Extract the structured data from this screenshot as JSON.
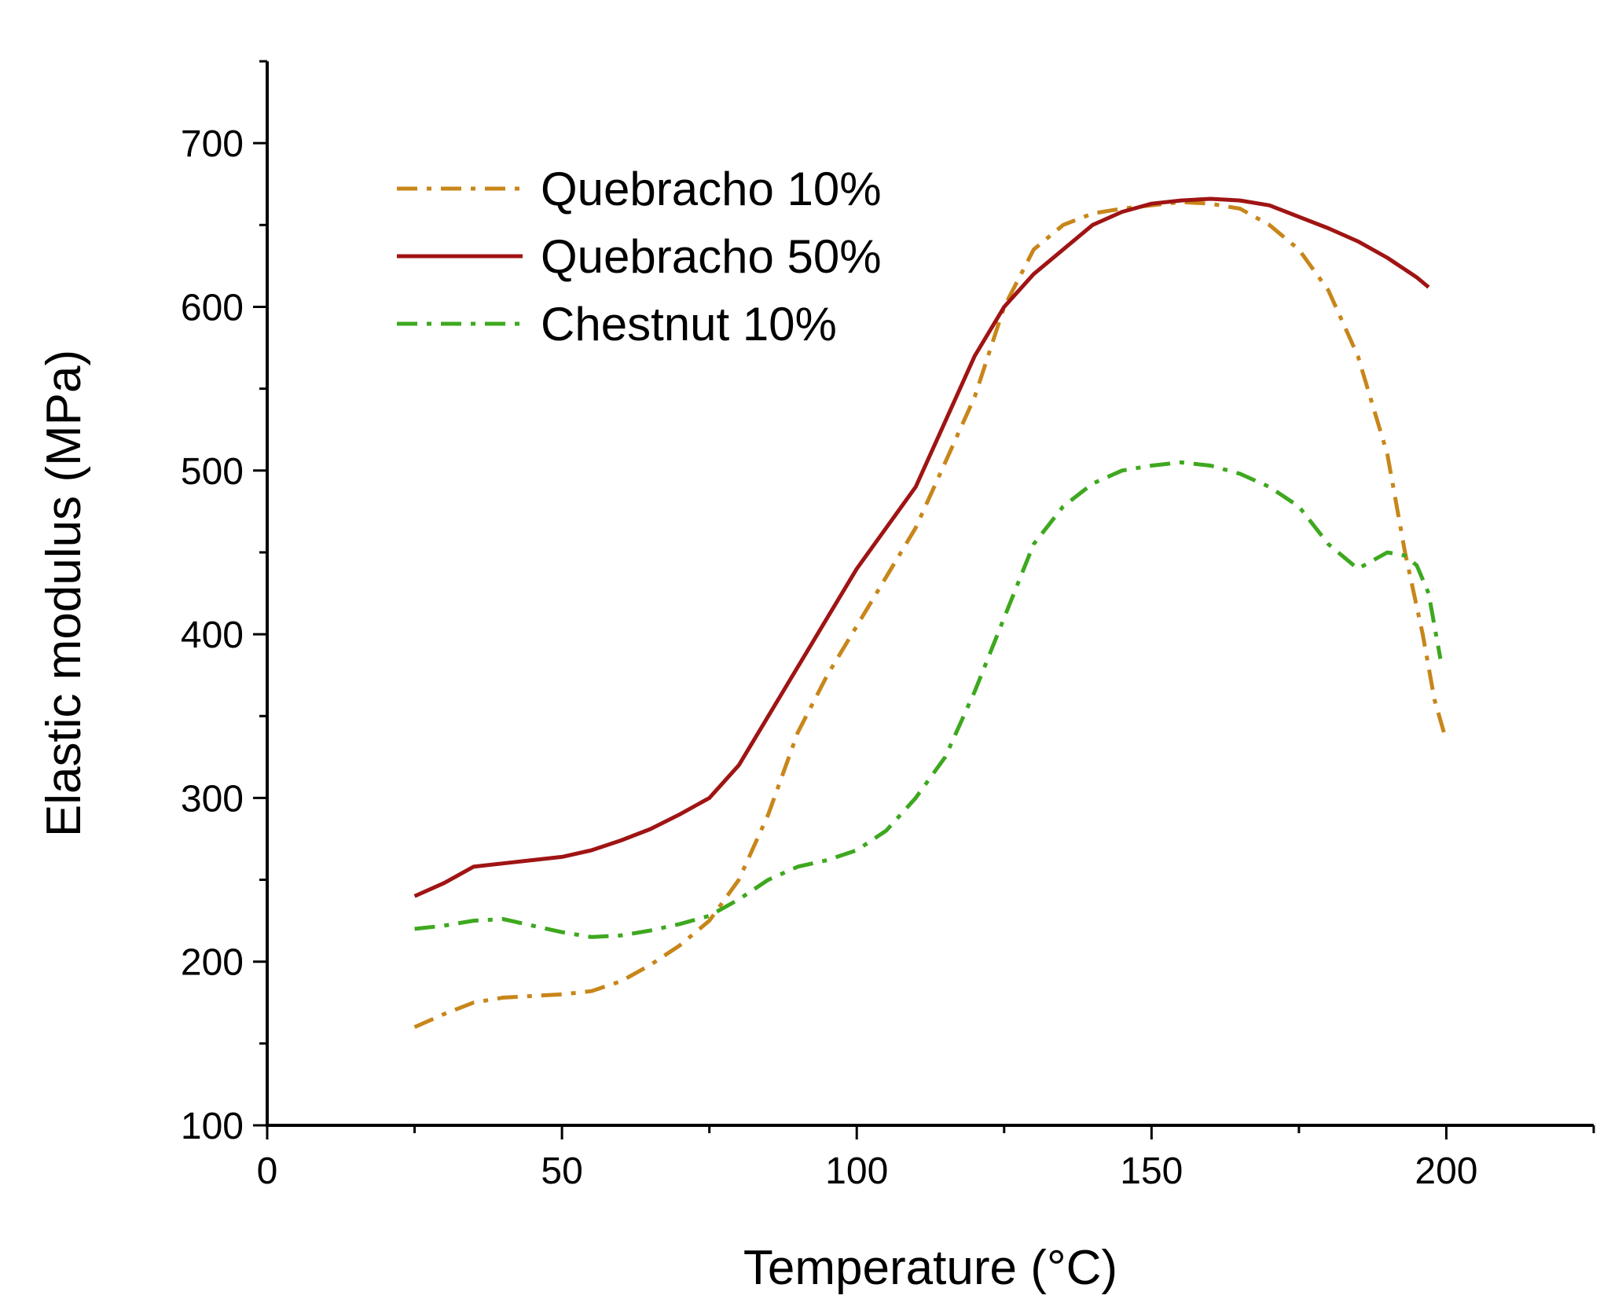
{
  "chart_data": {
    "type": "line",
    "title": "",
    "xlabel": "Temperature (°C)",
    "ylabel": "Elastic modulus (MPa)",
    "xlim": [
      0,
      225
    ],
    "ylim": [
      100,
      750
    ],
    "xticks": [
      0,
      50,
      100,
      150,
      200
    ],
    "yticks": [
      100,
      200,
      300,
      400,
      500,
      600,
      700
    ],
    "x_minor_step": 25,
    "y_minor_step": 50,
    "legend_position": "top-left",
    "series": [
      {
        "name": "Quebracho 10%",
        "color": "#C8861A",
        "style": "dashdot",
        "points": [
          [
            25,
            160
          ],
          [
            30,
            168
          ],
          [
            35,
            175
          ],
          [
            40,
            178
          ],
          [
            45,
            179
          ],
          [
            50,
            180
          ],
          [
            55,
            182
          ],
          [
            60,
            188
          ],
          [
            65,
            198
          ],
          [
            70,
            210
          ],
          [
            75,
            225
          ],
          [
            80,
            250
          ],
          [
            85,
            290
          ],
          [
            90,
            340
          ],
          [
            95,
            375
          ],
          [
            100,
            405
          ],
          [
            105,
            435
          ],
          [
            110,
            465
          ],
          [
            115,
            505
          ],
          [
            120,
            545
          ],
          [
            125,
            600
          ],
          [
            130,
            635
          ],
          [
            135,
            650
          ],
          [
            140,
            657
          ],
          [
            145,
            660
          ],
          [
            150,
            662
          ],
          [
            155,
            664
          ],
          [
            160,
            663
          ],
          [
            165,
            660
          ],
          [
            170,
            650
          ],
          [
            175,
            635
          ],
          [
            180,
            610
          ],
          [
            185,
            570
          ],
          [
            190,
            510
          ],
          [
            193,
            450
          ],
          [
            196,
            400
          ],
          [
            198,
            360
          ],
          [
            200,
            335
          ]
        ]
      },
      {
        "name": "Quebracho 50%",
        "color": "#A01414",
        "style": "solid",
        "points": [
          [
            25,
            240
          ],
          [
            30,
            248
          ],
          [
            35,
            258
          ],
          [
            40,
            260
          ],
          [
            45,
            262
          ],
          [
            50,
            264
          ],
          [
            55,
            268
          ],
          [
            60,
            274
          ],
          [
            65,
            281
          ],
          [
            70,
            290
          ],
          [
            75,
            300
          ],
          [
            80,
            320
          ],
          [
            85,
            350
          ],
          [
            90,
            380
          ],
          [
            95,
            410
          ],
          [
            100,
            440
          ],
          [
            105,
            465
          ],
          [
            110,
            490
          ],
          [
            115,
            530
          ],
          [
            120,
            570
          ],
          [
            125,
            600
          ],
          [
            130,
            620
          ],
          [
            135,
            635
          ],
          [
            140,
            650
          ],
          [
            145,
            658
          ],
          [
            150,
            663
          ],
          [
            155,
            665
          ],
          [
            160,
            666
          ],
          [
            165,
            665
          ],
          [
            170,
            662
          ],
          [
            175,
            655
          ],
          [
            180,
            648
          ],
          [
            185,
            640
          ],
          [
            190,
            630
          ],
          [
            195,
            618
          ],
          [
            197,
            612
          ]
        ]
      },
      {
        "name": "Chestnut 10%",
        "color": "#3EA81F",
        "style": "dashdot",
        "points": [
          [
            25,
            220
          ],
          [
            30,
            222
          ],
          [
            35,
            225
          ],
          [
            40,
            226
          ],
          [
            45,
            222
          ],
          [
            50,
            218
          ],
          [
            55,
            215
          ],
          [
            60,
            216
          ],
          [
            65,
            219
          ],
          [
            70,
            223
          ],
          [
            75,
            228
          ],
          [
            80,
            238
          ],
          [
            85,
            250
          ],
          [
            90,
            258
          ],
          [
            95,
            262
          ],
          [
            100,
            268
          ],
          [
            105,
            280
          ],
          [
            110,
            300
          ],
          [
            115,
            325
          ],
          [
            120,
            365
          ],
          [
            125,
            410
          ],
          [
            130,
            455
          ],
          [
            135,
            478
          ],
          [
            140,
            492
          ],
          [
            145,
            500
          ],
          [
            150,
            503
          ],
          [
            155,
            505
          ],
          [
            160,
            503
          ],
          [
            165,
            498
          ],
          [
            170,
            490
          ],
          [
            175,
            478
          ],
          [
            180,
            455
          ],
          [
            185,
            440
          ],
          [
            190,
            450
          ],
          [
            193,
            448
          ],
          [
            195,
            442
          ],
          [
            197,
            425
          ],
          [
            199,
            385
          ]
        ]
      }
    ]
  }
}
